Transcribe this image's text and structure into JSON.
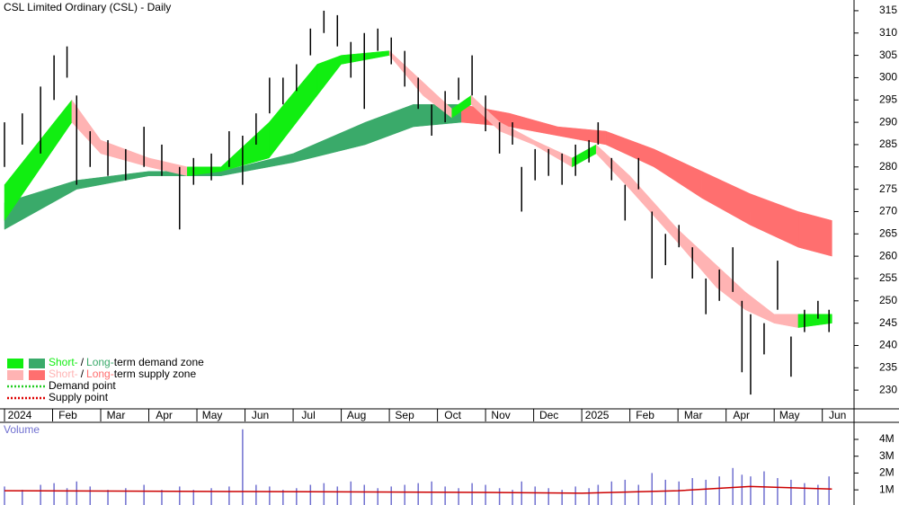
{
  "chart_data": {
    "type": "ohlc",
    "title": "CSL Limited Ordinary (CSL) - Daily",
    "xlim": [
      0,
      17.66
    ],
    "xticks": [
      {
        "value": 0,
        "label": "2024"
      },
      {
        "value": 1,
        "label": "Feb"
      },
      {
        "value": 2,
        "label": "Mar"
      },
      {
        "value": 3,
        "label": "Apr"
      },
      {
        "value": 4,
        "label": "May"
      },
      {
        "value": 5,
        "label": "Jun"
      },
      {
        "value": 6,
        "label": "Jul"
      },
      {
        "value": 7,
        "label": "Aug"
      },
      {
        "value": 8,
        "label": "Sep"
      },
      {
        "value": 9,
        "label": "Oct"
      },
      {
        "value": 10,
        "label": "Nov"
      },
      {
        "value": 11,
        "label": "Dec"
      },
      {
        "value": 12,
        "label": "2025"
      },
      {
        "value": 13,
        "label": "Feb"
      },
      {
        "value": 14,
        "label": "Mar"
      },
      {
        "value": 15,
        "label": "Apr"
      },
      {
        "value": 16,
        "label": "May"
      },
      {
        "value": 17,
        "label": "Jun"
      }
    ],
    "ylim": [
      225.8,
      317.4
    ],
    "yticks": [
      230,
      235,
      240,
      245,
      250,
      255,
      260,
      265,
      270,
      275,
      280,
      285,
      290,
      295,
      300,
      305,
      310,
      315
    ],
    "bar_color": "#000000",
    "x": [
      0,
      0.37,
      0.75,
      1.03,
      1.3,
      1.5,
      1.78,
      2.15,
      2.52,
      2.9,
      3.27,
      3.64,
      3.93,
      4.3,
      4.67,
      4.95,
      5.23,
      5.51,
      5.79,
      6.07,
      6.36,
      6.64,
      6.92,
      7.2,
      7.48,
      7.76,
      8.04,
      8.32,
      8.6,
      8.88,
      9.16,
      9.44,
      9.72,
      10.0,
      10.29,
      10.56,
      10.75,
      11.03,
      11.31,
      11.59,
      11.87,
      12.15,
      12.34,
      12.62,
      12.9,
      13.18,
      13.46,
      13.74,
      14.02,
      14.3,
      14.58,
      14.86,
      15.14,
      15.33,
      15.51,
      15.79,
      16.07,
      16.35,
      16.63,
      16.91,
      17.14
    ],
    "high": [
      290,
      292,
      298,
      305,
      307,
      296,
      288,
      286,
      284,
      289,
      285,
      280,
      282,
      283,
      288,
      287,
      292,
      300,
      300,
      303,
      311,
      315,
      314,
      308,
      310,
      311,
      309,
      306,
      300,
      294,
      297,
      300,
      305,
      296,
      290,
      290,
      280,
      284,
      284,
      283,
      285,
      286,
      290,
      282,
      276,
      282,
      270,
      265,
      267,
      262,
      255,
      257,
      262,
      250,
      247,
      245,
      259,
      242,
      248,
      250,
      248
    ],
    "low": [
      280,
      285,
      283,
      295,
      300,
      276,
      280,
      278,
      277,
      280,
      278,
      266,
      276,
      277,
      280,
      276,
      285,
      292,
      294,
      297,
      305,
      310,
      307,
      300,
      293,
      306,
      303,
      298,
      293,
      287,
      290,
      295,
      296,
      288,
      283,
      285,
      270,
      277,
      278,
      276,
      278,
      281,
      285,
      277,
      268,
      275,
      255,
      258,
      262,
      255,
      247,
      250,
      252,
      234,
      229,
      238,
      248,
      233,
      243,
      246,
      243
    ],
    "short_band": {
      "x": [
        0,
        1.4,
        2,
        3,
        3.8,
        4.5,
        5.5,
        6.5,
        7,
        8,
        8.7,
        9.3,
        9.7,
        10.3,
        11,
        11.8,
        12.3,
        13,
        14,
        14.8,
        15.4,
        16,
        16.5,
        17.2
      ],
      "upper": [
        276,
        295,
        286,
        282,
        280,
        280,
        290,
        303,
        305,
        306,
        299,
        293,
        296,
        290,
        286,
        282,
        285,
        278,
        266,
        258,
        252,
        247,
        247,
        247
      ],
      "lower": [
        268,
        290,
        283,
        280,
        278,
        279,
        282,
        296,
        303,
        305,
        296,
        291,
        294,
        288,
        285,
        280,
        283,
        275,
        263,
        253,
        248,
        245,
        244,
        245
      ],
      "demand_color": "#11ee11",
      "supply_color": "#ffb3b3"
    },
    "long_band": {
      "x": [
        0,
        1.5,
        3,
        4.5,
        6,
        7.5,
        8.5,
        9.5,
        10.5,
        11.5,
        12.5,
        13.5,
        14.5,
        15.5,
        16.5,
        17.2
      ],
      "upper": [
        272,
        277,
        279,
        279,
        283,
        290,
        294,
        294,
        292,
        289,
        288,
        284,
        279,
        274,
        270,
        268
      ],
      "lower": [
        266,
        275,
        278,
        278,
        281,
        285,
        289,
        290,
        289,
        287,
        285,
        280,
        273,
        267,
        262,
        260
      ],
      "demand_color": "#3aaa6a",
      "supply_color": "#ff6f6f"
    },
    "volume": {
      "label": "Volume",
      "color": "#7070d0",
      "ylim": [
        0.1,
        4.8
      ],
      "yticks": [
        {
          "value": 1,
          "label": "1M"
        },
        {
          "value": 2,
          "label": "2M"
        },
        {
          "value": 3,
          "label": "3M"
        },
        {
          "value": 4,
          "label": "4M"
        }
      ],
      "values": [
        1.2,
        1.0,
        1.3,
        1.4,
        1.1,
        1.5,
        1.2,
        1.0,
        1.1,
        1.3,
        1.0,
        1.2,
        1.0,
        1.1,
        1.2,
        4.6,
        1.3,
        1.2,
        1.0,
        1.1,
        1.3,
        1.4,
        1.2,
        1.5,
        1.3,
        1.1,
        1.2,
        1.3,
        1.4,
        1.5,
        1.2,
        1.1,
        1.4,
        1.3,
        1.1,
        1.0,
        1.5,
        1.2,
        1.1,
        1.0,
        1.2,
        1.1,
        1.3,
        1.5,
        1.6,
        1.3,
        2.0,
        1.6,
        1.5,
        1.7,
        1.6,
        1.8,
        2.3,
        1.9,
        1.8,
        2.1,
        1.7,
        1.6,
        1.4,
        1.3,
        1.8
      ],
      "average": {
        "x": [
          0,
          5,
          10,
          12,
          14,
          15.5,
          17.2
        ],
        "values": [
          0.95,
          0.9,
          0.85,
          0.8,
          0.95,
          1.2,
          1.05
        ],
        "color": "#cc0000"
      }
    },
    "legend": [
      {
        "short": "Short-",
        "sep": "/",
        "long": "Long-",
        "text": "term demand zone",
        "short_color": "#11ee11",
        "long_color": "#3aaa6a"
      },
      {
        "short": "Short-",
        "sep": "/",
        "long": "Long-",
        "text": "term supply zone",
        "short_color": "#ffb3b3",
        "long_color": "#ff6f6f"
      },
      {
        "text": "Demand point",
        "color": "#22cc22"
      },
      {
        "text": "Supply point",
        "color": "#dd0000"
      }
    ]
  }
}
